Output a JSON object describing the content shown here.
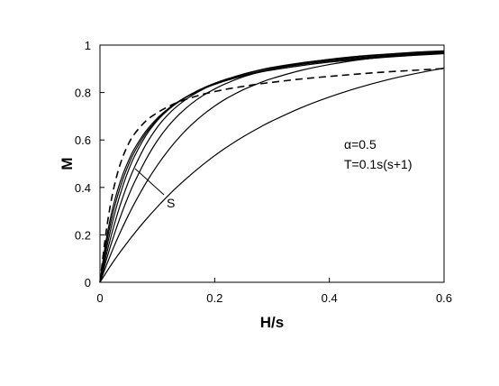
{
  "chart_data": {
    "type": "line",
    "xlabel": "H/s",
    "ylabel": "M",
    "xlim": [
      0,
      0.6
    ],
    "ylim": [
      0,
      1
    ],
    "x_ticks": [
      "0",
      "0.2",
      "0.4",
      "0.6"
    ],
    "y_ticks": [
      "0",
      "0.2",
      "0.4",
      "0.6",
      "0.8",
      "1"
    ],
    "grid": false,
    "legend": "none",
    "annotations": {
      "params_line1": "α=0.5",
      "params_line2": "T=0.1s(s+1)",
      "arrow_label": "S"
    },
    "x": [
      0,
      0.01,
      0.02,
      0.03,
      0.04,
      0.05,
      0.06,
      0.08,
      0.1,
      0.12,
      0.14,
      0.16,
      0.18,
      0.2,
      0.22,
      0.25,
      0.28,
      0.3,
      0.35,
      0.4,
      0.45,
      0.5,
      0.55,
      0.6
    ],
    "series": [
      {
        "style": "solid",
        "values": [
          0,
          0.167,
          0.29,
          0.383,
          0.456,
          0.514,
          0.563,
          0.637,
          0.692,
          0.734,
          0.767,
          0.794,
          0.816,
          0.834,
          0.85,
          0.87,
          0.886,
          0.895,
          0.913,
          0.928,
          0.939,
          0.949,
          0.957,
          0.964
        ]
      },
      {
        "style": "solid",
        "values": [
          0,
          0.147,
          0.265,
          0.359,
          0.435,
          0.497,
          0.549,
          0.628,
          0.686,
          0.73,
          0.765,
          0.793,
          0.816,
          0.836,
          0.852,
          0.873,
          0.889,
          0.899,
          0.918,
          0.932,
          0.943,
          0.952,
          0.96,
          0.966
        ]
      },
      {
        "style": "solid",
        "values": [
          0,
          0.126,
          0.235,
          0.328,
          0.407,
          0.474,
          0.53,
          0.618,
          0.682,
          0.729,
          0.766,
          0.795,
          0.819,
          0.839,
          0.856,
          0.877,
          0.894,
          0.904,
          0.922,
          0.936,
          0.947,
          0.956,
          0.963,
          0.969
        ]
      },
      {
        "style": "solid",
        "values": [
          0,
          0.105,
          0.2,
          0.285,
          0.36,
          0.426,
          0.484,
          0.58,
          0.654,
          0.71,
          0.753,
          0.787,
          0.814,
          0.836,
          0.855,
          0.878,
          0.896,
          0.906,
          0.925,
          0.939,
          0.951,
          0.96,
          0.967,
          0.973
        ]
      },
      {
        "style": "solid",
        "values": [
          0,
          0.085,
          0.165,
          0.238,
          0.305,
          0.366,
          0.421,
          0.517,
          0.597,
          0.661,
          0.712,
          0.754,
          0.788,
          0.815,
          0.838,
          0.866,
          0.887,
          0.899,
          0.923,
          0.94,
          0.953,
          0.962,
          0.97,
          0.976
        ]
      },
      {
        "style": "solid",
        "values": [
          0,
          0.064,
          0.125,
          0.182,
          0.235,
          0.285,
          0.332,
          0.418,
          0.493,
          0.559,
          0.616,
          0.665,
          0.707,
          0.743,
          0.774,
          0.812,
          0.842,
          0.859,
          0.893,
          0.918,
          0.937,
          0.952,
          0.963,
          0.972
        ]
      },
      {
        "style": "solid",
        "values": [
          0,
          0.038,
          0.075,
          0.11,
          0.143,
          0.175,
          0.206,
          0.264,
          0.318,
          0.368,
          0.414,
          0.457,
          0.497,
          0.534,
          0.568,
          0.614,
          0.655,
          0.68,
          0.735,
          0.781,
          0.82,
          0.853,
          0.88,
          0.903
        ]
      },
      {
        "style": "dashed",
        "values": [
          0,
          0.2,
          0.35,
          0.455,
          0.53,
          0.585,
          0.625,
          0.68,
          0.715,
          0.742,
          0.763,
          0.779,
          0.793,
          0.804,
          0.814,
          0.826,
          0.837,
          0.843,
          0.857,
          0.868,
          0.878,
          0.887,
          0.894,
          0.901
        ]
      }
    ]
  }
}
